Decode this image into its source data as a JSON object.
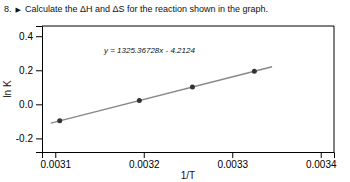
{
  "chart_data": {
    "type": "scatter",
    "title": "Calculate the ΔH and ΔS for the reaction shown in the graph.",
    "xlabel": "1/T",
    "ylabel": "ln K",
    "annotations": [
      {
        "text": "8."
      },
      {
        "text": "▶"
      },
      {
        "text": "y = 1325.36728x - 4.2124",
        "x": 0.003155,
        "y": 0.3
      }
    ],
    "series": [
      {
        "type": "line",
        "color": "#888888",
        "x": [
          0.003095,
          0.003345
        ],
        "values": [
          -0.1103882684,
          0.2209535516
        ]
      },
      {
        "type": "scatter",
        "color": "#333333",
        "x": [
          0.003105,
          0.003195,
          0.003255,
          0.003325
        ],
        "values": [
          -0.0971345956,
          0.0221484596,
          0.1016704964,
          0.194446206
        ]
      }
    ],
    "xlim": [
      0.003085,
      0.003415
    ],
    "ylim": [
      -0.28,
      0.46
    ],
    "xticks": [
      0.0031,
      0.0032,
      0.0033,
      0.0034
    ],
    "yticks": [
      -0.2,
      {
        "value": 0.0,
        "label": "0.0"
      },
      0.2,
      0.4
    ],
    "grid": false
  }
}
